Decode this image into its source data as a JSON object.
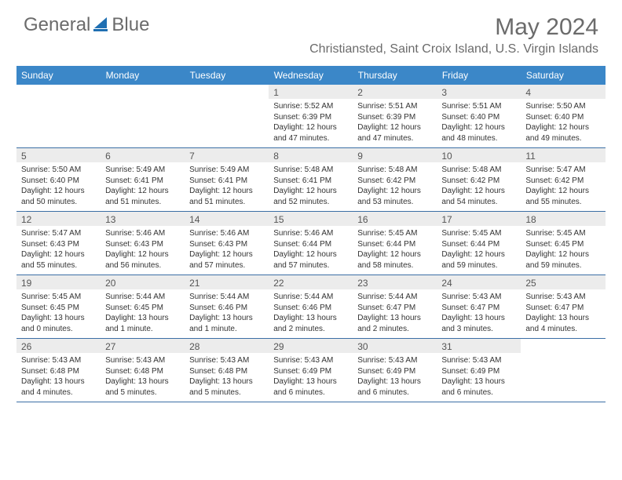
{
  "brand": {
    "word1": "General",
    "word2": "Blue"
  },
  "colors": {
    "header_bg": "#3b87c8",
    "header_text": "#ffffff",
    "daynum_bg": "#ececec",
    "rule": "#3b6ea5",
    "text_muted": "#6b6b6b",
    "logo_shape": "#1f6fb2"
  },
  "title": "May 2024",
  "location": "Christiansted, Saint Croix Island, U.S. Virgin Islands",
  "weekdays": [
    "Sunday",
    "Monday",
    "Tuesday",
    "Wednesday",
    "Thursday",
    "Friday",
    "Saturday"
  ],
  "weeks": [
    [
      {
        "n": "",
        "sr": "",
        "ss": "",
        "dl": ""
      },
      {
        "n": "",
        "sr": "",
        "ss": "",
        "dl": ""
      },
      {
        "n": "",
        "sr": "",
        "ss": "",
        "dl": ""
      },
      {
        "n": "1",
        "sr": "Sunrise: 5:52 AM",
        "ss": "Sunset: 6:39 PM",
        "dl": "Daylight: 12 hours and 47 minutes."
      },
      {
        "n": "2",
        "sr": "Sunrise: 5:51 AM",
        "ss": "Sunset: 6:39 PM",
        "dl": "Daylight: 12 hours and 47 minutes."
      },
      {
        "n": "3",
        "sr": "Sunrise: 5:51 AM",
        "ss": "Sunset: 6:40 PM",
        "dl": "Daylight: 12 hours and 48 minutes."
      },
      {
        "n": "4",
        "sr": "Sunrise: 5:50 AM",
        "ss": "Sunset: 6:40 PM",
        "dl": "Daylight: 12 hours and 49 minutes."
      }
    ],
    [
      {
        "n": "5",
        "sr": "Sunrise: 5:50 AM",
        "ss": "Sunset: 6:40 PM",
        "dl": "Daylight: 12 hours and 50 minutes."
      },
      {
        "n": "6",
        "sr": "Sunrise: 5:49 AM",
        "ss": "Sunset: 6:41 PM",
        "dl": "Daylight: 12 hours and 51 minutes."
      },
      {
        "n": "7",
        "sr": "Sunrise: 5:49 AM",
        "ss": "Sunset: 6:41 PM",
        "dl": "Daylight: 12 hours and 51 minutes."
      },
      {
        "n": "8",
        "sr": "Sunrise: 5:48 AM",
        "ss": "Sunset: 6:41 PM",
        "dl": "Daylight: 12 hours and 52 minutes."
      },
      {
        "n": "9",
        "sr": "Sunrise: 5:48 AM",
        "ss": "Sunset: 6:42 PM",
        "dl": "Daylight: 12 hours and 53 minutes."
      },
      {
        "n": "10",
        "sr": "Sunrise: 5:48 AM",
        "ss": "Sunset: 6:42 PM",
        "dl": "Daylight: 12 hours and 54 minutes."
      },
      {
        "n": "11",
        "sr": "Sunrise: 5:47 AM",
        "ss": "Sunset: 6:42 PM",
        "dl": "Daylight: 12 hours and 55 minutes."
      }
    ],
    [
      {
        "n": "12",
        "sr": "Sunrise: 5:47 AM",
        "ss": "Sunset: 6:43 PM",
        "dl": "Daylight: 12 hours and 55 minutes."
      },
      {
        "n": "13",
        "sr": "Sunrise: 5:46 AM",
        "ss": "Sunset: 6:43 PM",
        "dl": "Daylight: 12 hours and 56 minutes."
      },
      {
        "n": "14",
        "sr": "Sunrise: 5:46 AM",
        "ss": "Sunset: 6:43 PM",
        "dl": "Daylight: 12 hours and 57 minutes."
      },
      {
        "n": "15",
        "sr": "Sunrise: 5:46 AM",
        "ss": "Sunset: 6:44 PM",
        "dl": "Daylight: 12 hours and 57 minutes."
      },
      {
        "n": "16",
        "sr": "Sunrise: 5:45 AM",
        "ss": "Sunset: 6:44 PM",
        "dl": "Daylight: 12 hours and 58 minutes."
      },
      {
        "n": "17",
        "sr": "Sunrise: 5:45 AM",
        "ss": "Sunset: 6:44 PM",
        "dl": "Daylight: 12 hours and 59 minutes."
      },
      {
        "n": "18",
        "sr": "Sunrise: 5:45 AM",
        "ss": "Sunset: 6:45 PM",
        "dl": "Daylight: 12 hours and 59 minutes."
      }
    ],
    [
      {
        "n": "19",
        "sr": "Sunrise: 5:45 AM",
        "ss": "Sunset: 6:45 PM",
        "dl": "Daylight: 13 hours and 0 minutes."
      },
      {
        "n": "20",
        "sr": "Sunrise: 5:44 AM",
        "ss": "Sunset: 6:45 PM",
        "dl": "Daylight: 13 hours and 1 minute."
      },
      {
        "n": "21",
        "sr": "Sunrise: 5:44 AM",
        "ss": "Sunset: 6:46 PM",
        "dl": "Daylight: 13 hours and 1 minute."
      },
      {
        "n": "22",
        "sr": "Sunrise: 5:44 AM",
        "ss": "Sunset: 6:46 PM",
        "dl": "Daylight: 13 hours and 2 minutes."
      },
      {
        "n": "23",
        "sr": "Sunrise: 5:44 AM",
        "ss": "Sunset: 6:47 PM",
        "dl": "Daylight: 13 hours and 2 minutes."
      },
      {
        "n": "24",
        "sr": "Sunrise: 5:43 AM",
        "ss": "Sunset: 6:47 PM",
        "dl": "Daylight: 13 hours and 3 minutes."
      },
      {
        "n": "25",
        "sr": "Sunrise: 5:43 AM",
        "ss": "Sunset: 6:47 PM",
        "dl": "Daylight: 13 hours and 4 minutes."
      }
    ],
    [
      {
        "n": "26",
        "sr": "Sunrise: 5:43 AM",
        "ss": "Sunset: 6:48 PM",
        "dl": "Daylight: 13 hours and 4 minutes."
      },
      {
        "n": "27",
        "sr": "Sunrise: 5:43 AM",
        "ss": "Sunset: 6:48 PM",
        "dl": "Daylight: 13 hours and 5 minutes."
      },
      {
        "n": "28",
        "sr": "Sunrise: 5:43 AM",
        "ss": "Sunset: 6:48 PM",
        "dl": "Daylight: 13 hours and 5 minutes."
      },
      {
        "n": "29",
        "sr": "Sunrise: 5:43 AM",
        "ss": "Sunset: 6:49 PM",
        "dl": "Daylight: 13 hours and 6 minutes."
      },
      {
        "n": "30",
        "sr": "Sunrise: 5:43 AM",
        "ss": "Sunset: 6:49 PM",
        "dl": "Daylight: 13 hours and 6 minutes."
      },
      {
        "n": "31",
        "sr": "Sunrise: 5:43 AM",
        "ss": "Sunset: 6:49 PM",
        "dl": "Daylight: 13 hours and 6 minutes."
      },
      {
        "n": "",
        "sr": "",
        "ss": "",
        "dl": ""
      }
    ]
  ]
}
